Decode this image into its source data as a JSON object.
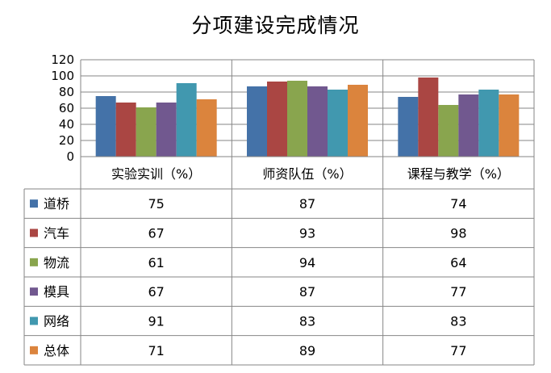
{
  "chart_data": {
    "type": "bar",
    "title": "分项建设完成情况",
    "categories": [
      "实验实训（%）",
      "师资队伍（%）",
      "课程与教学（%）"
    ],
    "series": [
      {
        "name": "道桥",
        "color": "#4472A8",
        "values": [
          75,
          87,
          74
        ]
      },
      {
        "name": "汽车",
        "color": "#AA4643",
        "values": [
          67,
          93,
          98
        ]
      },
      {
        "name": "物流",
        "color": "#89A54E",
        "values": [
          61,
          94,
          64
        ]
      },
      {
        "name": "模具",
        "color": "#71588F",
        "values": [
          67,
          87,
          77
        ]
      },
      {
        "name": "网络",
        "color": "#4198AF",
        "values": [
          91,
          83,
          83
        ]
      },
      {
        "name": "总体",
        "color": "#DB843D",
        "values": [
          71,
          89,
          77
        ]
      }
    ],
    "yticks": [
      0,
      20,
      40,
      60,
      80,
      100,
      120
    ],
    "ylim": [
      0,
      120
    ],
    "grid": true,
    "legend": "data-table-left",
    "xlabel": "",
    "ylabel": ""
  }
}
